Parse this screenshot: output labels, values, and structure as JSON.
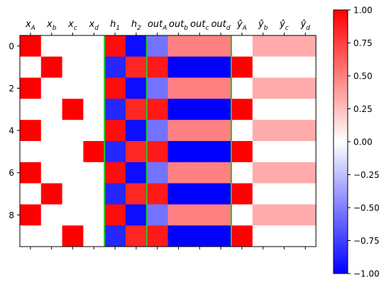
{
  "chart_data": {
    "type": "heatmap",
    "title": "",
    "xlabel": "",
    "ylabel": "",
    "columns": [
      "x_A",
      "x_b",
      "x_c",
      "x_d",
      "h_1",
      "h_2",
      "out_A",
      "out_b",
      "out_c",
      "out_d",
      "ŷ_A",
      "ŷ_b",
      "ŷ_c",
      "ŷ_d"
    ],
    "column_labels": [
      {
        "base": "x",
        "sub": "A",
        "hat": false
      },
      {
        "base": "x",
        "sub": "b",
        "hat": false
      },
      {
        "base": "x",
        "sub": "c",
        "hat": false
      },
      {
        "base": "x",
        "sub": "d",
        "hat": false
      },
      {
        "base": "h",
        "sub": "1",
        "hat": false
      },
      {
        "base": "h",
        "sub": "2",
        "hat": false
      },
      {
        "base": "out",
        "sub": "A",
        "hat": false
      },
      {
        "base": "out",
        "sub": "b",
        "hat": false
      },
      {
        "base": "out",
        "sub": "c",
        "hat": false
      },
      {
        "base": "out",
        "sub": "d",
        "hat": false
      },
      {
        "base": "y",
        "sub": "A",
        "hat": true
      },
      {
        "base": "y",
        "sub": "b",
        "hat": true
      },
      {
        "base": "y",
        "sub": "c",
        "hat": true
      },
      {
        "base": "y",
        "sub": "d",
        "hat": true
      }
    ],
    "x_axis_position": "top",
    "rows": 10,
    "y_ticks": [
      0,
      2,
      4,
      6,
      8
    ],
    "y_tick_labels": [
      "0",
      "2",
      "4",
      "6",
      "8"
    ],
    "values": [
      [
        1,
        0,
        0,
        0,
        0.95,
        -0.95,
        -0.55,
        0.5,
        0.5,
        0.5,
        0,
        0.33,
        0.33,
        0.33
      ],
      [
        0,
        1,
        0,
        0,
        -0.85,
        0.85,
        0.9,
        -1,
        -1,
        -1,
        1,
        0,
        0,
        0
      ],
      [
        1,
        0,
        0,
        0,
        0.95,
        -0.95,
        -0.55,
        0.5,
        0.5,
        0.5,
        0,
        0.33,
        0.33,
        0.33
      ],
      [
        0,
        0,
        1,
        0,
        -0.85,
        0.85,
        0.9,
        -1,
        -1,
        -1,
        1,
        0,
        0,
        0
      ],
      [
        1,
        0,
        0,
        0,
        0.95,
        -0.95,
        -0.55,
        0.5,
        0.5,
        0.5,
        0,
        0.33,
        0.33,
        0.33
      ],
      [
        0,
        0,
        0,
        1,
        -0.85,
        0.85,
        0.9,
        -1,
        -1,
        -1,
        1,
        0,
        0,
        0
      ],
      [
        1,
        0,
        0,
        0,
        0.95,
        -0.95,
        -0.55,
        0.5,
        0.5,
        0.5,
        0,
        0.33,
        0.33,
        0.33
      ],
      [
        0,
        1,
        0,
        0,
        -0.85,
        0.85,
        0.9,
        -1,
        -1,
        -1,
        1,
        0,
        0,
        0
      ],
      [
        1,
        0,
        0,
        0,
        0.95,
        -0.95,
        -0.55,
        0.5,
        0.5,
        0.5,
        0,
        0.33,
        0.33,
        0.33
      ],
      [
        0,
        0,
        1,
        0,
        -0.85,
        0.85,
        0.9,
        -1,
        -1,
        -1,
        1,
        0,
        0,
        0
      ]
    ],
    "separator_columns": [
      4,
      6,
      10
    ],
    "separator_color": "#22cc22",
    "colormap": "bwr",
    "colormap_colors": {
      "low": "#0000ff",
      "mid": "#ffffff",
      "high": "#ff0000"
    },
    "vmin": -1.0,
    "vmax": 1.0,
    "colorbar_ticks": [
      1.0,
      0.75,
      0.5,
      0.25,
      0.0,
      -0.25,
      -0.5,
      -0.75,
      -1.0
    ],
    "colorbar_tick_labels": [
      "1.00",
      "0.75",
      "0.50",
      "0.25",
      "0.00",
      "−0.25",
      "−0.50",
      "−0.75",
      "−1.00"
    ],
    "legend": "colorbar-right",
    "grid": false
  }
}
